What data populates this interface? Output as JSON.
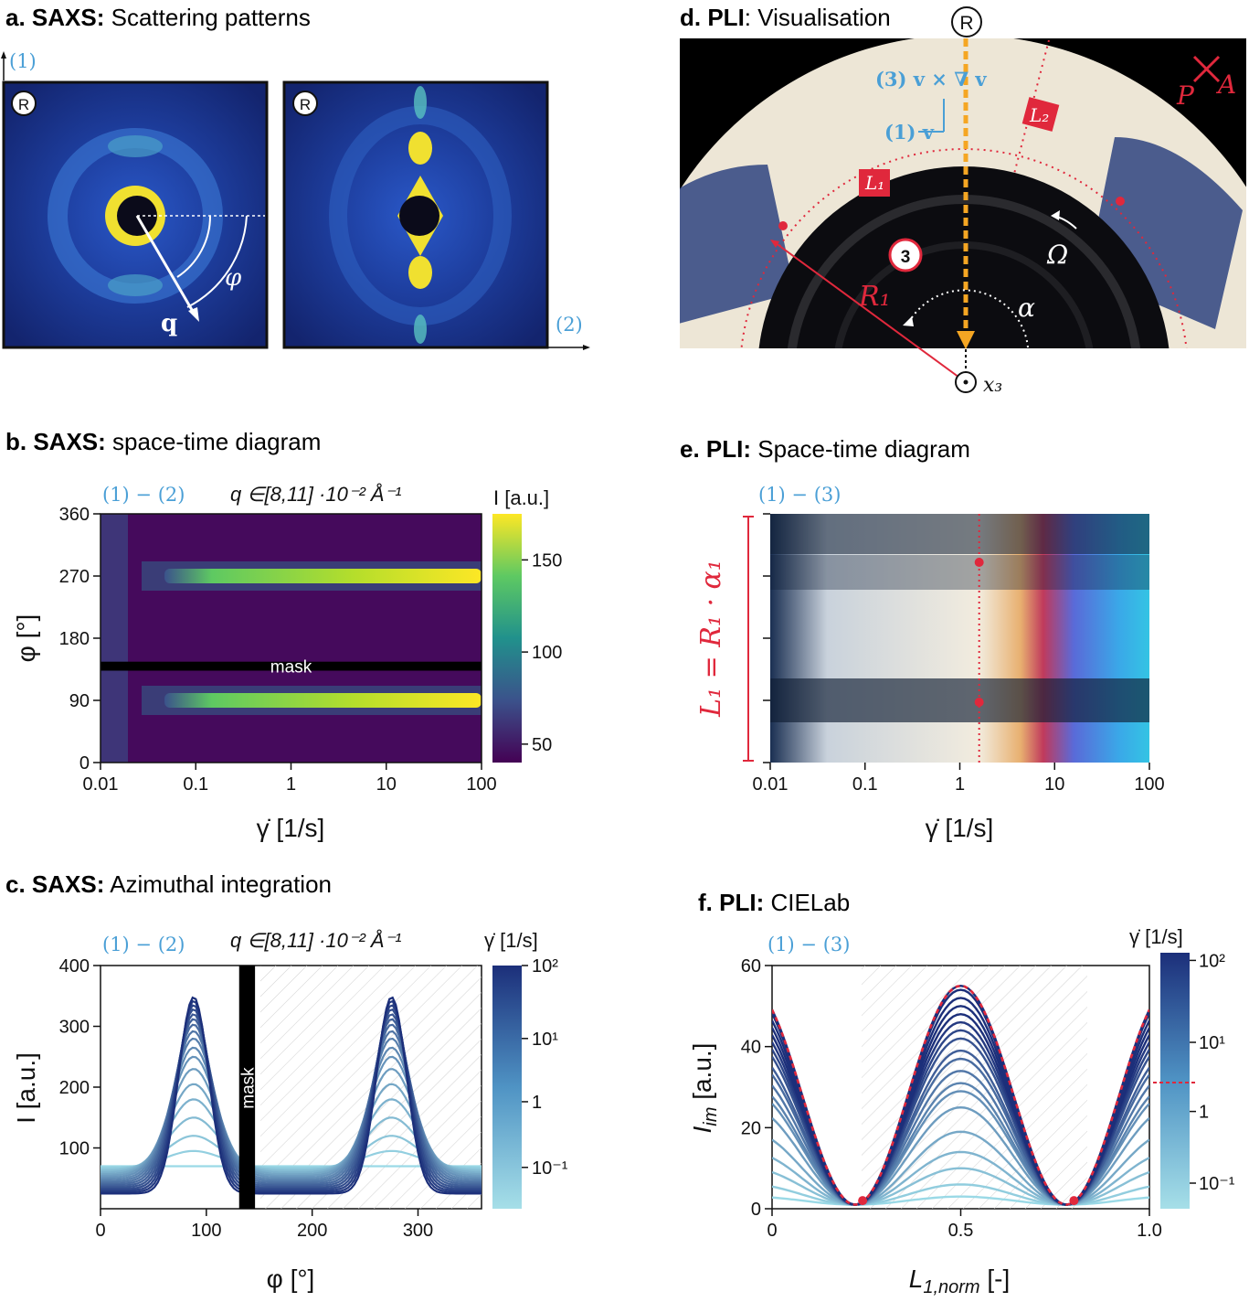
{
  "titles": {
    "a": {
      "letter": "a.",
      "tech": "SAXS:",
      "text": "Scattering patterns"
    },
    "b": {
      "letter": "b.",
      "tech": "SAXS:",
      "text": "space-time diagram"
    },
    "c": {
      "letter": "c.",
      "tech": "SAXS:",
      "text": "Azimuthal integration"
    },
    "d": {
      "letter": "d.",
      "tech": "PLI",
      "text": ": Visualisation"
    },
    "e": {
      "letter": "e.",
      "tech": "PLI:",
      "text": "Space-time diagram"
    },
    "f": {
      "letter": "f.",
      "tech": "PLI:",
      "text": "CIELab"
    }
  },
  "labels": {
    "dir1": "(1)",
    "dir2": "(2)",
    "R": "R",
    "q": "q",
    "phi": "φ",
    "plane12": "(1) − (2)",
    "plane13": "(1) − (3)",
    "qrange": "q ∈[8,11] ·10⁻² Å⁻¹",
    "mask": "mask",
    "colorbar_I": "I [a.u.]",
    "colorbar_gamma": "γ̇ [1/s]",
    "xlabel_gamma": "γ̇ [1/s]",
    "ylabel_phi": "φ [°]",
    "ylabel_I": "I [a.u.]",
    "xlabel_phi": "φ [°]",
    "ylabel_Iim": "I",
    "ylabel_Iim_sub": "im",
    "ylabel_Iim_unit": " [a.u.]",
    "xlabel_L": "L",
    "xlabel_L_sub": "1,norm",
    "xlabel_L_unit": " [-]",
    "L1_eq": "L₁ = R₁ · α₁",
    "d_vgrad": "(3) v × ∇ v",
    "d_v": "(1) v",
    "d_L1": "L₁",
    "d_L2": "L₂",
    "d_P": "P",
    "d_A": "A",
    "d_Omega": "Ω",
    "d_R1": "R₁",
    "d_alpha": "α",
    "d_x3": "x₃",
    "d_3": "3"
  },
  "colors": {
    "viridis_low": "#440154",
    "viridis_high": "#fde725",
    "blue_label": "#4a9fd6",
    "red": "#e0283c",
    "orange": "#f5a623",
    "curve_dark": "#1c2f7a",
    "curve_light": "#9ad9e6"
  },
  "chart_data": [
    {
      "panel": "b",
      "type": "heatmap",
      "xscale": "log",
      "xlim": [
        0.01,
        100
      ],
      "xticks": [
        "0.01",
        "0.1",
        "1",
        "10",
        "100"
      ],
      "ylim": [
        0,
        360
      ],
      "yticks": [
        "0",
        "90",
        "180",
        "270",
        "360"
      ],
      "bands_deg": [
        90,
        270
      ],
      "mask_deg": [
        133,
        146
      ],
      "colorbar_ticks": [
        "50",
        "100",
        "150"
      ],
      "colorbar_range": [
        40,
        175
      ]
    },
    {
      "panel": "c",
      "type": "line",
      "xlim": [
        0,
        360
      ],
      "xticks": [
        "0",
        "100",
        "200",
        "300"
      ],
      "ylim": [
        0,
        400
      ],
      "yticks": [
        "100",
        "200",
        "300",
        "400"
      ],
      "peak_positions_deg": [
        88,
        275
      ],
      "mask_deg": [
        131,
        146
      ],
      "peak_heights": [
        70,
        95,
        120,
        150,
        180,
        205,
        230,
        250,
        265,
        280,
        292,
        303,
        312,
        320,
        328,
        335,
        342,
        348
      ],
      "colorbar_ticks": [
        "10²",
        "10¹",
        "1",
        "10⁻¹"
      ]
    },
    {
      "panel": "e",
      "type": "heatmap",
      "xscale": "log",
      "xlim": [
        0.01,
        100
      ],
      "xticks": [
        "0.01",
        "0.1",
        "1",
        "10",
        "100"
      ],
      "marker_gamma": 1.6
    },
    {
      "panel": "f",
      "type": "line",
      "xlim": [
        0,
        1
      ],
      "xticks": [
        "0",
        "0.5",
        "1.0"
      ],
      "ylim": [
        0,
        60
      ],
      "yticks": [
        "0",
        "20",
        "40",
        "60"
      ],
      "peak_heights": [
        2,
        5,
        9,
        13,
        18,
        24,
        28,
        30,
        33,
        36,
        38,
        41,
        43,
        45,
        47,
        49,
        51,
        53,
        54
      ],
      "colorbar_ticks": [
        "10²",
        "10¹",
        "1",
        "10⁻¹"
      ]
    }
  ]
}
